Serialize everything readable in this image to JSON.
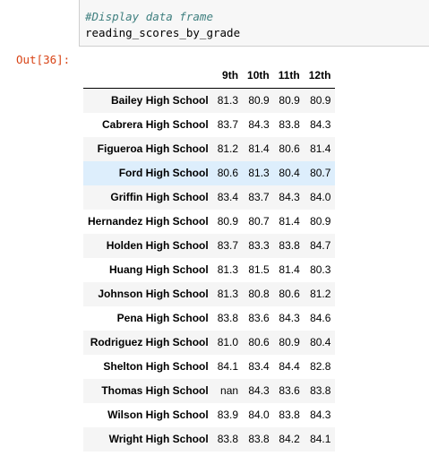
{
  "cell": {
    "code_comment": "#Display data frame",
    "code_statement": "reading_scores_by_grade",
    "output_prompt": "Out[36]:"
  },
  "table": {
    "columns": [
      "9th",
      "10th",
      "11th",
      "12th"
    ],
    "rows": [
      {
        "school": "Bailey High School",
        "values": [
          "81.3",
          "80.9",
          "80.9",
          "80.9"
        ]
      },
      {
        "school": "Cabrera High School",
        "values": [
          "83.7",
          "84.3",
          "83.8",
          "84.3"
        ]
      },
      {
        "school": "Figueroa High School",
        "values": [
          "81.2",
          "81.4",
          "80.6",
          "81.4"
        ]
      },
      {
        "school": "Ford High School",
        "values": [
          "80.6",
          "81.3",
          "80.4",
          "80.7"
        ]
      },
      {
        "school": "Griffin High School",
        "values": [
          "83.4",
          "83.7",
          "84.3",
          "84.0"
        ]
      },
      {
        "school": "Hernandez High School",
        "values": [
          "80.9",
          "80.7",
          "81.4",
          "80.9"
        ]
      },
      {
        "school": "Holden High School",
        "values": [
          "83.7",
          "83.3",
          "83.8",
          "84.7"
        ]
      },
      {
        "school": "Huang High School",
        "values": [
          "81.3",
          "81.5",
          "81.4",
          "80.3"
        ]
      },
      {
        "school": "Johnson High School",
        "values": [
          "81.3",
          "80.8",
          "80.6",
          "81.2"
        ]
      },
      {
        "school": "Pena High School",
        "values": [
          "83.8",
          "83.6",
          "84.3",
          "84.6"
        ]
      },
      {
        "school": "Rodriguez High School",
        "values": [
          "81.0",
          "80.6",
          "80.9",
          "80.4"
        ]
      },
      {
        "school": "Shelton High School",
        "values": [
          "84.1",
          "83.4",
          "84.4",
          "82.8"
        ]
      },
      {
        "school": "Thomas High School",
        "values": [
          "nan",
          "84.3",
          "83.6",
          "83.8"
        ]
      },
      {
        "school": "Wilson High School",
        "values": [
          "83.9",
          "84.0",
          "83.8",
          "84.3"
        ]
      },
      {
        "school": "Wright High School",
        "values": [
          "83.8",
          "83.8",
          "84.2",
          "84.1"
        ]
      }
    ],
    "hovered_row": "Ford High School"
  },
  "colors": {
    "comment": "#408080",
    "prompt": "#d84315",
    "hover_row": "#ddeefc",
    "stripe_row": "#f5f5f5"
  }
}
